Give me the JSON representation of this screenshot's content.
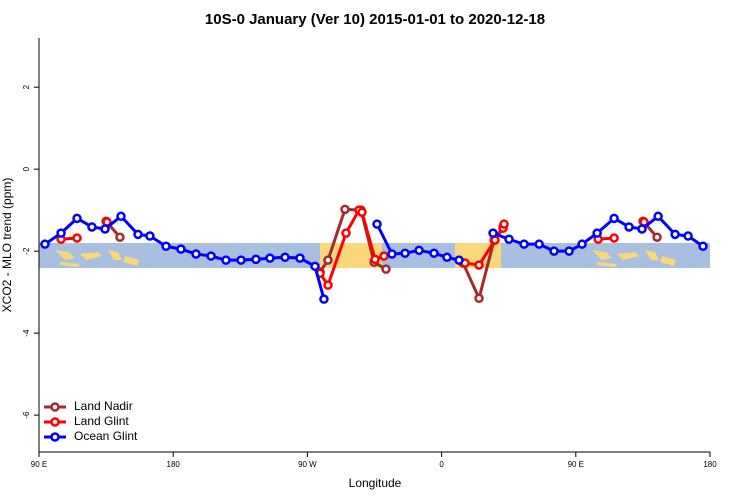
{
  "chart_data": {
    "type": "line",
    "title": "10S-0 January (Ver 10)   2015-01-01 to 2020-12-18",
    "x_label": "Longitude",
    "y_label": "XCO2 - MLO trend (ppm)",
    "xlim": [
      90,
      540
    ],
    "xticks": [
      {
        "value": 90,
        "label": "90 E"
      },
      180,
      {
        "value": 270,
        "label": "90 W"
      },
      {
        "value": 360,
        "label": "0"
      },
      {
        "value": 450,
        "label": "90 E"
      },
      {
        "value": 540,
        "label": "180"
      }
    ],
    "ylim": [
      -6.9,
      3.2
    ],
    "yticks": [
      -6,
      -4,
      -2,
      0,
      2
    ],
    "legend": "bottom-left",
    "series": [
      {
        "name": "Land Nadir",
        "color": "#a52a2a",
        "x": [
          135,
          144.3,
          null,
          278.5,
          283.8,
          295.2,
          306,
          314.7,
          322.7,
          null,
          374.4,
          385.1,
          395.2,
          401.2,
          null,
          495.1,
          504.5
        ],
        "values": [
          -1.27,
          -1.66,
          null,
          -2.51,
          -2.22,
          -0.98,
          -1.0,
          -2.27,
          -2.44,
          null,
          -2.29,
          -3.15,
          -1.73,
          -1.41,
          null,
          -1.27,
          -1.66
        ]
      },
      {
        "name": "Land Glint",
        "color": "#ff0000",
        "x": [
          104.8,
          115.5,
          null,
          135.6,
          null,
          278.5,
          283.8,
          295.9,
          304.6,
          306.6,
          315.4,
          321.4,
          null,
          375.7,
          385.1,
          395.8,
          401.2,
          401.9,
          null,
          465,
          475.7,
          null,
          495.8
        ],
        "values": [
          -1.71,
          -1.68,
          null,
          -1.29,
          null,
          -2.54,
          -2.83,
          -1.56,
          -1.0,
          -1.05,
          -2.2,
          -2.12,
          null,
          -2.29,
          -2.34,
          -1.73,
          -1.44,
          -1.34,
          null,
          -1.71,
          -1.68,
          null,
          -1.29
        ]
      },
      {
        "name": "Ocean Glint",
        "color": "#0000ff",
        "x": [
          94,
          104.8,
          115.5,
          125.5,
          134.3,
          145,
          156.4,
          164.4,
          175.2,
          185.2,
          195.3,
          205.4,
          215.4,
          225.5,
          235.5,
          244.9,
          255,
          265,
          275.1,
          281.1,
          null,
          316.7,
          326.7,
          335.5,
          344.9,
          354.9,
          363.6,
          371.7,
          null,
          394.5,
          405.2,
          415.3,
          425.4,
          435.4,
          445.5,
          454.2,
          464.3,
          475.7,
          485.7,
          494.4,
          505.2,
          516.6,
          525.3,
          535.3
        ],
        "values": [
          -1.83,
          -1.56,
          -1.2,
          -1.41,
          -1.46,
          -1.15,
          -1.59,
          -1.63,
          -1.88,
          -1.95,
          -2.07,
          -2.12,
          -2.22,
          -2.22,
          -2.2,
          -2.17,
          -2.15,
          -2.17,
          -2.37,
          -3.17,
          null,
          -1.34,
          -2.07,
          -2.05,
          -1.98,
          -2.05,
          -2.15,
          -2.22,
          null,
          -1.56,
          -1.71,
          -1.83,
          -1.83,
          -2.0,
          -2.0,
          -1.83,
          -1.56,
          -1.2,
          -1.41,
          -1.46,
          -1.15,
          -1.59,
          -1.63,
          -1.88
        ]
      }
    ]
  }
}
